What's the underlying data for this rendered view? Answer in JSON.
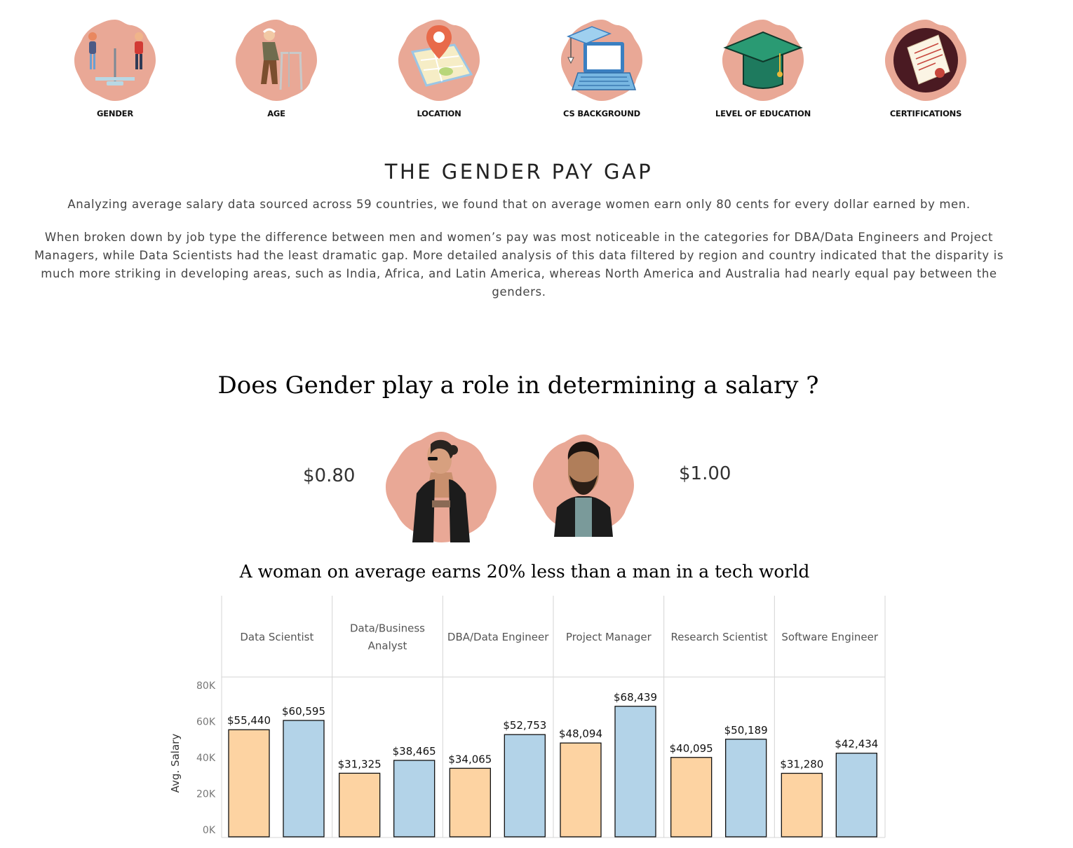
{
  "nav": {
    "items": [
      {
        "label": "GENDER",
        "icon": "gender-scale-icon"
      },
      {
        "label": "AGE",
        "icon": "elderly-walker-icon"
      },
      {
        "label": "LOCATION",
        "icon": "map-pin-icon"
      },
      {
        "label": "CS BACKGROUND",
        "icon": "laptop-grad-cap-icon"
      },
      {
        "label": "LEVEL OF EDUCATION",
        "icon": "graduation-cap-icon"
      },
      {
        "label": "CERTIFICATIONS",
        "icon": "certificate-icon"
      }
    ]
  },
  "section": {
    "title": "THE GENDER PAY GAP",
    "intro": "Analyzing average salary data sourced across 59 countries, we found that on average women earn only 80 cents for every dollar earned by men.",
    "detail": "When broken down by job type the difference between men and women’s pay was most noticeable in the categories for DBA/Data Engineers and Project Managers, while Data Scientists had the least dramatic gap. More detailed analysis of this data filtered by region and country indicated that the disparity is much more striking in developing areas, such as India, Africa, and Latin America, whereas North America and Australia had nearly equal pay between the genders."
  },
  "question": "Does Gender play a role in determining a salary ?",
  "comparison": {
    "female_value": "$0.80",
    "male_value": "$1.00",
    "female_icon": "woman-avatar-icon",
    "male_icon": "man-avatar-icon"
  },
  "subtitle": "A woman on average earns 20% less than a man in a tech world",
  "colors": {
    "badge": "#e9a896",
    "female_bar": "#fdd3a2",
    "male_bar": "#b3d3e8"
  },
  "chart_data": {
    "type": "bar",
    "categories": [
      "Data Scientist",
      "Data/Business Analyst",
      "DBA/Data Engineer",
      "Project Manager",
      "Research Scientist",
      "Software Engineer"
    ],
    "category_lines": [
      [
        "Data Scientist"
      ],
      [
        "Data/Business",
        "Analyst"
      ],
      [
        "DBA/Data Engineer"
      ],
      [
        "Project Manager"
      ],
      [
        "Research Scientist"
      ],
      [
        "Software Engineer"
      ]
    ],
    "series": [
      {
        "values": [
          55440,
          31325,
          34065,
          48094,
          40095,
          31280
        ],
        "labels": [
          "$55,440",
          "$31,325",
          "$34,065",
          "$48,094",
          "$40,095",
          "$31,280"
        ],
        "color": "#fdd3a2"
      },
      {
        "values": [
          60595,
          38465,
          52753,
          68439,
          50189,
          42434
        ],
        "labels": [
          "$60,595",
          "$38,465",
          "$52,753",
          "$68,439",
          "$50,189",
          "$42,434"
        ],
        "color": "#b3d3e8"
      }
    ],
    "ylabel": "Avg. Salary",
    "yticks": [
      {
        "value": 0,
        "label": "0K"
      },
      {
        "value": 20000,
        "label": "20K"
      },
      {
        "value": 40000,
        "label": "40K"
      },
      {
        "value": 60000,
        "label": "60K"
      },
      {
        "value": 80000,
        "label": "80K"
      }
    ],
    "ylim": [
      0,
      80000
    ]
  }
}
